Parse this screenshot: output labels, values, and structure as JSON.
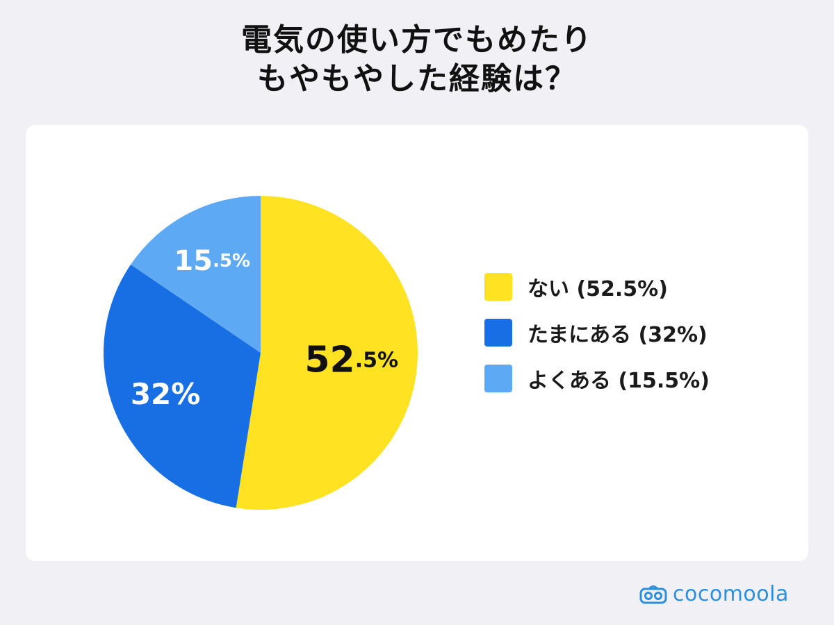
{
  "title": {
    "line1": "電気の使い方でもめたり",
    "line2": "もやもやした経験は？"
  },
  "chart_data": {
    "type": "pie",
    "slices": [
      {
        "label": "ない",
        "legend": "ない (52.5%)",
        "value": 52.5,
        "label_big": "52",
        "label_small": ".5%",
        "color": "#ffe322",
        "text_color": "#111111"
      },
      {
        "label": "たまにある",
        "legend": "たまにある (32%)",
        "value": 32,
        "label_big": "32%",
        "label_small": "",
        "color": "#176fe3",
        "text_color": "#ffffff"
      },
      {
        "label": "よくある",
        "legend": "よくある (15.5%)",
        "value": 15.5,
        "label_big": "15",
        "label_small": ".5%",
        "color": "#5ea9f3",
        "text_color": "#ffffff"
      }
    ]
  },
  "logo": {
    "text": "cocomoola",
    "icon": "cocomoola-logo-icon",
    "color": "#2a8fdd"
  }
}
